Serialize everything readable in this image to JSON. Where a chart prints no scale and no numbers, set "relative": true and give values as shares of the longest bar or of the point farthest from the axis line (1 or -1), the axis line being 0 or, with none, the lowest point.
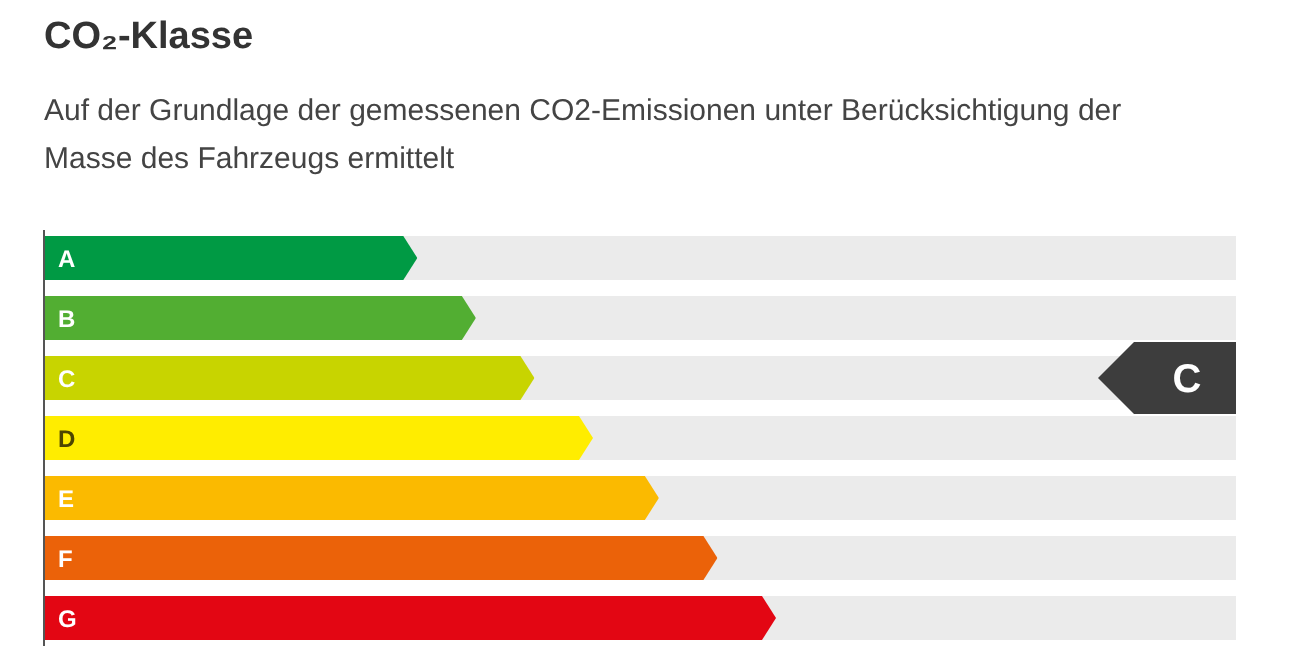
{
  "chart_data": {
    "type": "bar",
    "orientation": "horizontal",
    "relative": true,
    "title": "CO₂-Klasse",
    "subtitle": "Auf der Grundlage der gemessenen CO2-Emissionen unter Berücksichtigung der Masse des Fahrzeugs ermittelt",
    "categories": [
      "A",
      "B",
      "C",
      "D",
      "E",
      "F",
      "G"
    ],
    "values": [
      0.51,
      0.59,
      0.67,
      0.75,
      0.84,
      0.92,
      1
    ],
    "colors": [
      "#009a44",
      "#52ae32",
      "#c8d400",
      "#ffed00",
      "#fbba00",
      "#eb6209",
      "#e30613"
    ],
    "needle": "C"
  }
}
